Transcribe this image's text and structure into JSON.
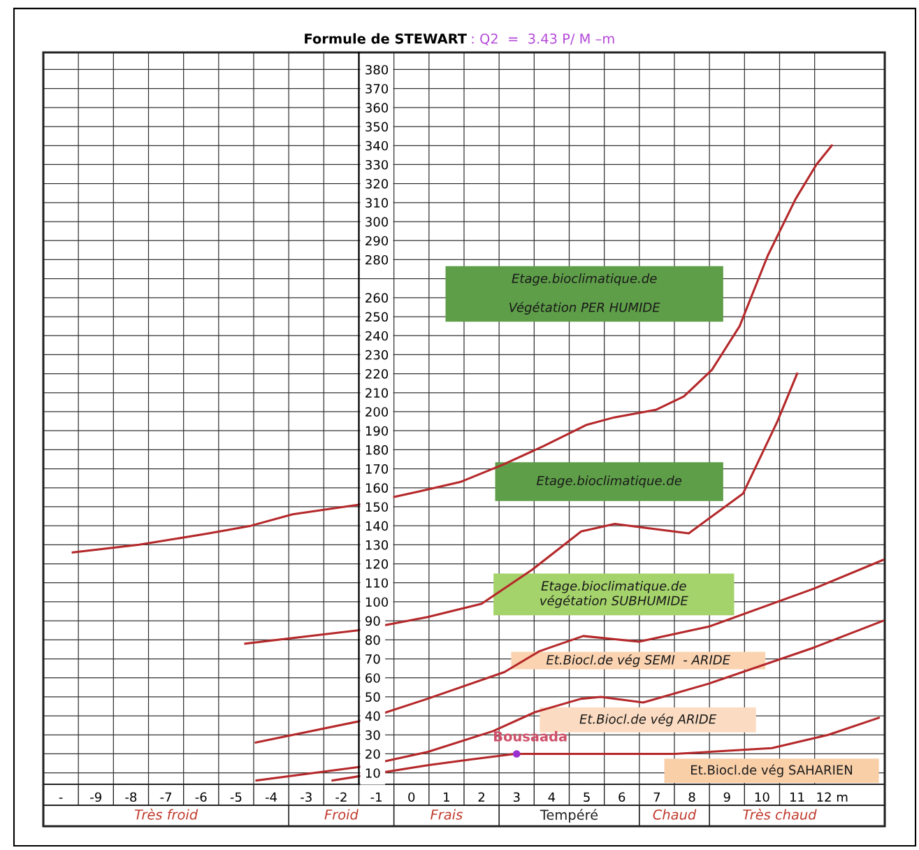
{
  "chart_data": {
    "type": "line",
    "title": "Formule de STEWART",
    "subtitle": ": Q2  =  3.43 P/ M –m",
    "xlim": [
      -10.5,
      13.5
    ],
    "xticks": [
      {
        "value": -10,
        "label": "-"
      },
      -9,
      -8,
      -7,
      -6,
      -5,
      -4,
      -3,
      -2,
      -1,
      0,
      1,
      2,
      3,
      4,
      5,
      6,
      7,
      8,
      9,
      10,
      11,
      {
        "value": 12,
        "label": "12 m"
      }
    ],
    "ylim": [
      4,
      389
    ],
    "yticks": [
      10,
      20,
      30,
      40,
      50,
      60,
      70,
      80,
      90,
      100,
      110,
      120,
      130,
      140,
      150,
      160,
      170,
      180,
      190,
      200,
      210,
      220,
      230,
      240,
      250,
      260,
      {
        "value": 270,
        "label": null
      },
      280,
      290,
      300,
      310,
      320,
      330,
      340,
      350,
      360,
      370,
      380
    ],
    "grid": true,
    "series": [
      {
        "color": "#b5282a",
        "x": [
          -9.66,
          -7.77,
          -5.78,
          -4.58,
          -3.39,
          -1.53,
          0.2,
          1.39,
          2.59,
          3.78,
          4.98,
          5.78,
          6.97,
          7.77,
          8.57,
          9.36,
          10.16,
          10.96,
          11.55,
          11.99
        ],
        "values": [
          126,
          130,
          136,
          140,
          146,
          151,
          158,
          163,
          172,
          182,
          193,
          197,
          201,
          208,
          222,
          245,
          282,
          312,
          330,
          340
        ]
      },
      {
        "color": "#b5282a",
        "x": [
          -4.74,
          -1.53,
          0.46,
          2.0,
          3.45,
          4.84,
          5.8,
          7.91,
          9.46,
          10.44,
          11.0
        ],
        "values": [
          78,
          85,
          92,
          99,
          117,
          137,
          141,
          136,
          157,
          195,
          220
        ]
      },
      {
        "color": "#b5282a",
        "x": [
          -4.44,
          -1.53,
          0.46,
          2.65,
          3.65,
          4.9,
          6.49,
          8.49,
          11.49,
          13.45
        ],
        "values": [
          26,
          37,
          49,
          63,
          74,
          82,
          79,
          87,
          107,
          122
        ]
      },
      {
        "color": "#b5282a",
        "x": [
          -4.42,
          -1.53,
          0.46,
          2.33,
          3.53,
          4.84,
          5.4,
          6.61,
          8.49,
          11.49,
          13.45
        ],
        "values": [
          6,
          13,
          21,
          32,
          42,
          49,
          50,
          47,
          57,
          76,
          90
        ]
      },
      {
        "color": "#b5282a",
        "x": [
          -2.25,
          0.46,
          1.65,
          2.95,
          4.44,
          7.51,
          10.28,
          11.89,
          13.33
        ],
        "values": [
          6,
          14,
          17,
          20,
          20,
          20,
          23,
          30,
          39
        ]
      },
      {
        "type": "scatter",
        "name": "Bousaada",
        "color": "#9b30d0",
        "x": [
          3
        ],
        "values": [
          20
        ],
        "marker": "circle"
      }
    ],
    "annotations": [
      "Etage.bioclimatique.de\n\nVégétation PER HUMIDE",
      "Etage.bioclimatique.de",
      "Etage.bioclimatique.de\nvégétation SUBHUMIDE",
      "Et.Biocl.de vég SEMI  - ARIDE",
      "Et.Biocl.de vég ARIDE",
      "Et.Biocl.de vég SAHARIEN",
      "Très froid",
      "Froid",
      "Frais",
      "Tempéré",
      "Chaud",
      "Très chaud"
    ]
  }
}
